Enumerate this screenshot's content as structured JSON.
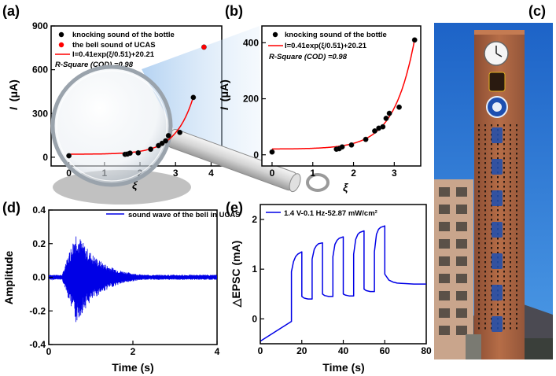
{
  "panels": {
    "a": "(a)",
    "b": "(b)",
    "c": "(c)",
    "d": "(d)",
    "e": "(e)"
  },
  "colors": {
    "fit": "#ff0000",
    "bell": "#ff0000",
    "knock": "#000000",
    "wave": "#0000e6",
    "sky": "#1f6fd0",
    "tower": "#a9613f"
  },
  "chart_data": [
    {
      "id": "a",
      "type": "scatter",
      "title": "",
      "xlabel": "ξ",
      "ylabel_main": "I",
      "ylabel_unit": "(μA)",
      "xlim": [
        -0.5,
        4.3
      ],
      "ylim": [
        -60,
        900
      ],
      "xticks": [
        "0",
        "1",
        "2",
        "3",
        "4"
      ],
      "yticks": [
        "0",
        "300",
        "600",
        "900"
      ],
      "legend": [
        "knocking sound of the bottle",
        "the bell sound of UCAS",
        "I=0.41exp(ξ/0.51)+20.21",
        "R-Square (COD) =0.98"
      ],
      "series": [
        {
          "name": "knocking sound of the bottle",
          "x": [
            0,
            1.58,
            1.65,
            1.72,
            1.95,
            2.3,
            2.52,
            2.62,
            2.72,
            2.8,
            3.12,
            3.5
          ],
          "y": [
            10,
            20,
            22,
            28,
            30,
            55,
            80,
            95,
            112,
            148,
            170,
            410
          ]
        },
        {
          "name": "the bell sound of UCAS",
          "x": [
            3.8
          ],
          "y": [
            755
          ]
        },
        {
          "name": "fit",
          "fit": {
            "a": 0.41,
            "b": 0.51,
            "c": 20.21
          },
          "xrange": [
            0,
            3.5
          ]
        }
      ]
    },
    {
      "id": "b",
      "type": "scatter",
      "title": "",
      "xlabel": "ξ",
      "ylabel_main": "I",
      "ylabel_unit": "(μA)",
      "xlim": [
        -0.25,
        3.65
      ],
      "ylim": [
        -40,
        460
      ],
      "xticks": [
        "0",
        "1",
        "2",
        "3"
      ],
      "yticks": [
        "0",
        "200",
        "400"
      ],
      "legend": [
        "knocking sound of the bottle",
        "I=0.41exp(ξ/0.51)+20.21",
        "R-Square (COD) =0.98"
      ],
      "series": [
        {
          "name": "knocking sound of the bottle",
          "x": [
            0,
            1.58,
            1.65,
            1.72,
            1.95,
            2.3,
            2.52,
            2.62,
            2.72,
            2.8,
            2.88,
            3.12,
            3.5
          ],
          "y": [
            10,
            20,
            22,
            28,
            35,
            55,
            85,
            95,
            100,
            130,
            148,
            170,
            410
          ]
        },
        {
          "name": "fit",
          "fit": {
            "a": 0.41,
            "b": 0.51,
            "c": 20.21
          },
          "xrange": [
            0,
            3.5
          ]
        }
      ]
    },
    {
      "id": "d",
      "type": "line",
      "title": "",
      "xlabel": "Time (s)",
      "ylabel": "Amplitude",
      "xlim": [
        0,
        4
      ],
      "ylim": [
        -0.4,
        0.4
      ],
      "xticks": [
        "0",
        "2",
        "4"
      ],
      "yticks": [
        "-0.4",
        "-0.2",
        "0.0",
        "0.2",
        "0.4"
      ],
      "legend": [
        "sound wave of the bell in UCAS"
      ],
      "series": [
        {
          "name": "sound wave of the bell in UCAS",
          "onset": 0.3,
          "peak_time": 0.65,
          "peak_amp": 0.28,
          "noise_floor": 0.015
        }
      ]
    },
    {
      "id": "e",
      "type": "line",
      "title": "",
      "xlabel": "Time (s)",
      "ylabel": "△EPSC (mA)",
      "xlim": [
        0,
        80
      ],
      "ylim": [
        -0.5,
        2.3
      ],
      "xticks": [
        "0",
        "20",
        "40",
        "60",
        "80"
      ],
      "yticks": [
        "0",
        "1",
        "2"
      ],
      "legend": [
        "1.4 V-0.1 Hz-52.87 mW/cm²"
      ],
      "series": [
        {
          "name": "1.4 V-0.1 Hz-52.87 mW/cm²",
          "x": [
            0,
            15,
            15,
            16,
            17,
            18,
            20,
            20,
            21,
            22,
            23,
            25,
            25,
            26,
            27,
            28,
            30,
            30,
            31,
            32,
            33,
            35,
            35,
            36,
            37,
            38,
            40,
            40,
            41,
            42,
            43,
            45,
            45,
            46,
            47,
            48,
            50,
            50,
            51,
            52,
            53,
            55,
            55,
            56,
            57,
            58,
            60,
            60,
            62,
            64,
            66,
            70,
            74,
            80
          ],
          "y": [
            -0.45,
            -0.05,
            0.95,
            1.15,
            1.25,
            1.3,
            1.35,
            0.45,
            0.42,
            0.41,
            0.4,
            0.4,
            1.2,
            1.4,
            1.47,
            1.51,
            1.53,
            0.5,
            0.47,
            0.46,
            0.45,
            0.45,
            1.25,
            1.5,
            1.58,
            1.62,
            1.65,
            0.5,
            0.48,
            0.47,
            0.46,
            0.46,
            1.3,
            1.6,
            1.7,
            1.74,
            1.77,
            0.6,
            0.57,
            0.56,
            0.55,
            0.55,
            1.35,
            1.7,
            1.8,
            1.84,
            1.87,
            0.9,
            0.78,
            0.74,
            0.72,
            0.71,
            0.7,
            0.7
          ]
        }
      ]
    }
  ]
}
